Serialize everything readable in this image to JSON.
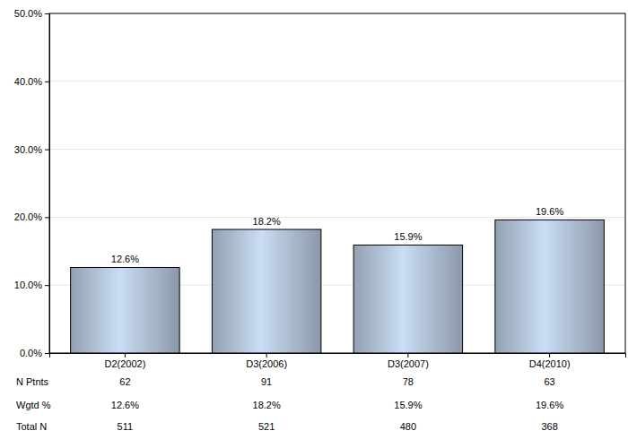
{
  "chart_data": {
    "type": "bar",
    "categories": [
      "D2(2002)",
      "D3(2006)",
      "D3(2007)",
      "D4(2010)"
    ],
    "values": [
      12.6,
      18.2,
      15.9,
      19.6
    ],
    "value_labels": [
      "12.6%",
      "18.2%",
      "15.9%",
      "19.6%"
    ],
    "color": "#a6b6c9",
    "ylim": [
      0,
      50
    ],
    "yticks": [
      {
        "value": 0,
        "label": "0.0%"
      },
      {
        "value": 10,
        "label": "10.0%"
      },
      {
        "value": 20,
        "label": "20.0%"
      },
      {
        "value": 30,
        "label": "30.0%"
      },
      {
        "value": 40,
        "label": "40.0%"
      },
      {
        "value": 50,
        "label": "50.0%"
      }
    ],
    "grid": true,
    "data_labels": true,
    "table": {
      "rows": [
        {
          "label": "N Ptnts",
          "values": [
            62,
            91,
            78,
            63
          ]
        },
        {
          "label": "Wgtd %",
          "values": [
            12.6,
            18.2,
            15.9,
            19.6
          ],
          "value_labels": [
            "12.6%",
            "18.2%",
            "15.9%",
            "19.6%"
          ]
        },
        {
          "label": "Total N",
          "values": [
            511,
            521,
            480,
            368
          ]
        }
      ]
    }
  }
}
